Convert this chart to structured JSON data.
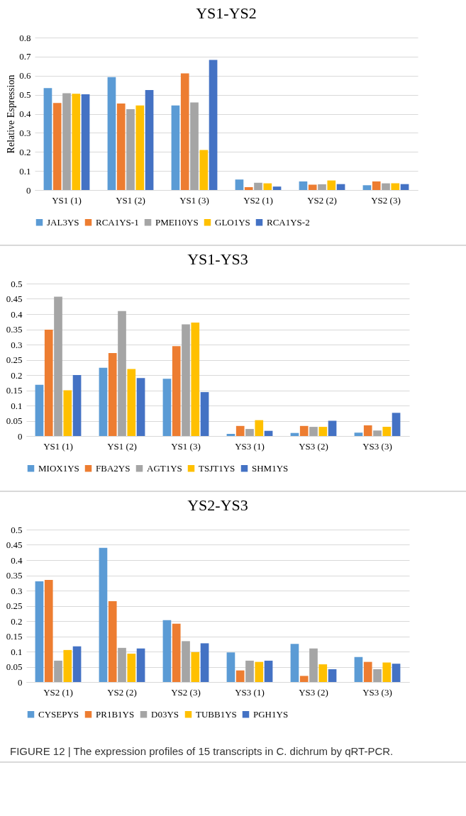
{
  "chart_data": [
    {
      "type": "bar",
      "title": "YS1-YS2",
      "ylabel": "Relative Espression",
      "categories": [
        "YS1 (1)",
        "YS1 (2)",
        "YS1 (3)",
        "YS2 (1)",
        "YS2 (2)",
        "YS2 (3)"
      ],
      "series": [
        {
          "name": "JAL3YS",
          "color": "#5b9bd5",
          "values": [
            0.535,
            0.593,
            0.444,
            0.055,
            0.045,
            0.025
          ]
        },
        {
          "name": "RCA1YS-1",
          "color": "#ed7d31",
          "values": [
            0.457,
            0.454,
            0.612,
            0.015,
            0.028,
            0.045
          ]
        },
        {
          "name": "PMEI10YS",
          "color": "#a5a5a5",
          "values": [
            0.508,
            0.424,
            0.46,
            0.038,
            0.03,
            0.035
          ]
        },
        {
          "name": "GLO1YS",
          "color": "#ffc000",
          "values": [
            0.505,
            0.444,
            0.21,
            0.035,
            0.05,
            0.035
          ]
        },
        {
          "name": "RCA1YS-2",
          "color": "#4472c4",
          "values": [
            0.502,
            0.525,
            0.683,
            0.018,
            0.031,
            0.031
          ]
        }
      ],
      "ylim": [
        0,
        0.8
      ],
      "yticks": [
        0,
        0.1,
        0.2,
        0.3,
        0.4,
        0.5,
        0.6,
        0.7,
        0.8
      ],
      "grid": "y",
      "legend": "bottom"
    },
    {
      "type": "bar",
      "title": "YS1-YS3",
      "categories": [
        "YS1 (1)",
        "YS1 (2)",
        "YS1 (3)",
        "YS3 (1)",
        "YS3 (2)",
        "YS3 (3)"
      ],
      "series": [
        {
          "name": "MIOX1YS",
          "color": "#5b9bd5",
          "values": [
            0.168,
            0.224,
            0.188,
            0.007,
            0.01,
            0.011
          ]
        },
        {
          "name": "FBA2YS",
          "color": "#ed7d31",
          "values": [
            0.349,
            0.272,
            0.295,
            0.033,
            0.033,
            0.035
          ]
        },
        {
          "name": "AGT1YS",
          "color": "#a5a5a5",
          "values": [
            0.457,
            0.41,
            0.366,
            0.023,
            0.03,
            0.018
          ]
        },
        {
          "name": "TSJT1YS",
          "color": "#ffc000",
          "values": [
            0.15,
            0.22,
            0.372,
            0.052,
            0.03,
            0.03
          ]
        },
        {
          "name": "SHM1YS",
          "color": "#4472c4",
          "values": [
            0.2,
            0.19,
            0.144,
            0.017,
            0.05,
            0.076
          ]
        }
      ],
      "ylim": [
        0,
        0.5
      ],
      "yticks": [
        0,
        0.05,
        0.1,
        0.15,
        0.2,
        0.25,
        0.3,
        0.35,
        0.4,
        0.45,
        0.5
      ],
      "grid": "y",
      "legend": "bottom"
    },
    {
      "type": "bar",
      "title": "YS2-YS3",
      "categories": [
        "YS2 (1)",
        "YS2 (2)",
        "YS2 (3)",
        "YS3 (1)",
        "YS3 (2)",
        "YS3 (3)"
      ],
      "series": [
        {
          "name": "CYSEPYS",
          "color": "#5b9bd5",
          "values": [
            0.33,
            0.44,
            0.203,
            0.097,
            0.125,
            0.082
          ]
        },
        {
          "name": "PR1B1YS",
          "color": "#ed7d31",
          "values": [
            0.335,
            0.265,
            0.191,
            0.038,
            0.02,
            0.066
          ]
        },
        {
          "name": "D03YS",
          "color": "#a5a5a5",
          "values": [
            0.07,
            0.112,
            0.134,
            0.07,
            0.11,
            0.042
          ]
        },
        {
          "name": "TUBB1YS",
          "color": "#ffc000",
          "values": [
            0.105,
            0.093,
            0.098,
            0.066,
            0.058,
            0.064
          ]
        },
        {
          "name": "PGH1YS",
          "color": "#4472c4",
          "values": [
            0.117,
            0.11,
            0.127,
            0.07,
            0.042,
            0.06
          ]
        }
      ],
      "ylim": [
        0,
        0.5
      ],
      "yticks": [
        0,
        0.05,
        0.1,
        0.15,
        0.2,
        0.25,
        0.3,
        0.35,
        0.4,
        0.45,
        0.5
      ],
      "grid": "y",
      "legend": "bottom",
      "annotations": [
        "FIGURE 12 | The expression profiles of 15 transcripts in C. dichrum by qRT-PCR."
      ]
    }
  ]
}
